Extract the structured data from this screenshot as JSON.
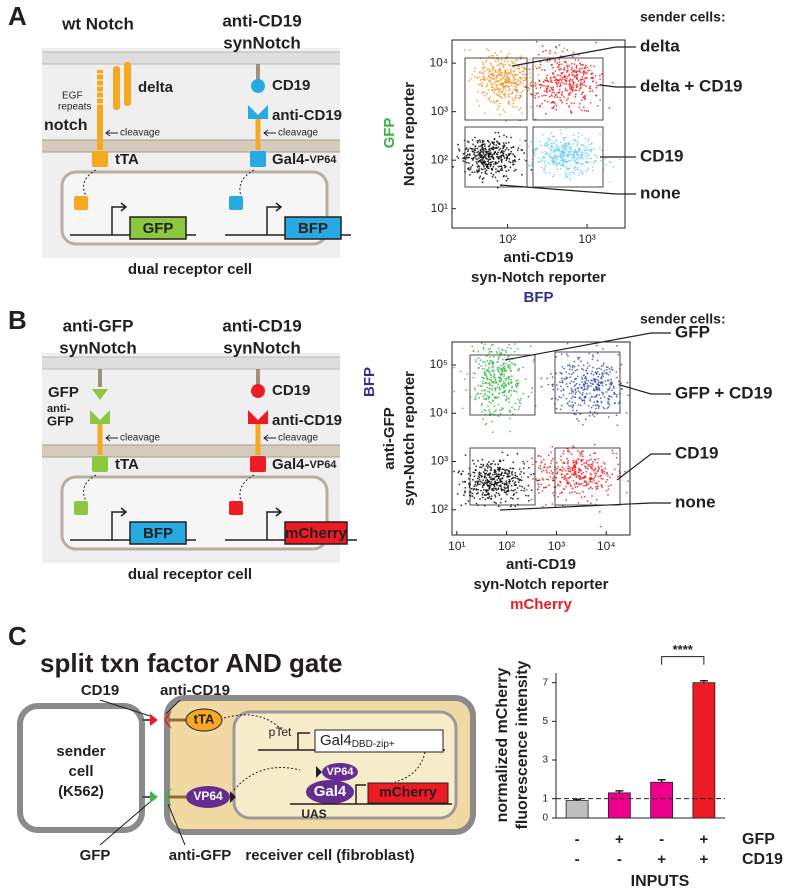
{
  "panel_a": {
    "label": "A",
    "left_title": [
      "wt Notch"
    ],
    "right_title": [
      "anti-CD19",
      "synNotch"
    ],
    "ligand_left": "delta",
    "egf": [
      "EGF",
      "repeats"
    ],
    "receptor_left": [
      "notch"
    ],
    "cleavage": [
      "cleavage",
      "cleavage"
    ],
    "ligand_right": "CD19",
    "receptor_right": "anti-CD19",
    "tf_left": "tTA",
    "tf_right": "Gal4-",
    "tf_right_sub": "VP64",
    "reporter_left": "GFP",
    "reporter_right": "BFP",
    "cell": "dual receptor cell"
  },
  "panel_b": {
    "label": "B",
    "left_title": [
      "anti-GFP",
      "synNotch"
    ],
    "right_title": [
      "anti-CD19",
      "synNotch"
    ],
    "ligand_left": "GFP",
    "receptor_left": [
      "anti-",
      "GFP"
    ],
    "cleavage": [
      "cleavage",
      "cleavage"
    ],
    "ligand_right": "CD19",
    "receptor_right": "anti-CD19",
    "tf_left": "tTA",
    "tf_right": "Gal4-",
    "tf_right_sub": "VP64",
    "reporter_left": "BFP",
    "reporter_right": "mCherry",
    "cell": "dual receptor cell"
  },
  "panel_c": {
    "label": "C",
    "title": "split txn factor AND gate",
    "sender": [
      "sender",
      "cell",
      "(K562)"
    ],
    "ligand_top": "CD19",
    "receptor_top": "anti-CD19",
    "ligand_bottom": "GFP",
    "receptor_bottom": "anti-GFP",
    "tta": "tTA",
    "vp64": [
      "VP64",
      "VP64"
    ],
    "ptet": "pTet",
    "gal4_dbd": "Gal4",
    "gal4_dbd_sub": "DBD-zip+",
    "gal4": "Gal4",
    "mcherry": "mCherry",
    "uas": "UAS",
    "receiver": "receiver cell (fibroblast)"
  },
  "chart_data": [
    {
      "type": "scatter",
      "log": true,
      "legend_title": "sender cells:",
      "gates": [
        "delta",
        "delta + CD19",
        "CD19",
        "none"
      ],
      "colors": [
        "#f7941d",
        "#ed1c24",
        "#6dcff6",
        "#000000"
      ],
      "ylabel": [
        "Notch reporter"
      ],
      "ylabel_tag": "GFP",
      "ylabel_tag_color": "#3cb043",
      "xlabel": [
        "anti-CD19",
        "syn-Notch reporter"
      ],
      "xlabel_tag": "BFP",
      "xlabel_tag_color": "#2e3192",
      "xlim": [
        20,
        3000
      ],
      "ylim": [
        4,
        30000
      ],
      "xticks": [
        {
          "value": 100,
          "label": "10²"
        },
        {
          "value": 1000,
          "label": "10³"
        }
      ],
      "yticks": [
        {
          "value": 10,
          "label": "10¹"
        },
        {
          "value": 100,
          "label": "10²"
        },
        {
          "value": 1000,
          "label": "10³"
        },
        {
          "value": 10000,
          "label": "10⁴"
        }
      ]
    },
    {
      "type": "scatter",
      "log": true,
      "legend_title": "sender cells:",
      "gates": [
        "GFP",
        "GFP + CD19",
        "CD19",
        "none"
      ],
      "colors": [
        "#39b54a",
        "#3a53a4",
        "#ed1c24",
        "#000000"
      ],
      "ylabel": [
        "anti-GFP",
        "syn-Notch reporter"
      ],
      "ylabel_tag": "BFP",
      "ylabel_tag_color": "#2e3192",
      "xlabel": [
        "anti-CD19",
        "syn-Notch reporter"
      ],
      "xlabel_tag": "mCherry",
      "xlabel_tag_color": "#ed1c24",
      "xlim": [
        8,
        30000
      ],
      "ylim": [
        30,
        300000
      ],
      "xticks": [
        {
          "value": 10,
          "label": "10¹"
        },
        {
          "value": 100,
          "label": "10²"
        },
        {
          "value": 1000,
          "label": "10³"
        },
        {
          "value": 10000,
          "label": "10⁴"
        }
      ],
      "yticks": [
        {
          "value": 100,
          "label": "10²"
        },
        {
          "value": 1000,
          "label": "10³"
        },
        {
          "value": 10000,
          "label": "10⁴"
        },
        {
          "value": 100000,
          "label": "10⁵"
        }
      ]
    },
    {
      "type": "bar",
      "ylabel": [
        "normalized mCherry",
        "fluorescence intensity"
      ],
      "values": [
        0.9,
        1.3,
        1.85,
        7
      ],
      "errors": [
        0.07,
        0.1,
        0.13,
        0.1
      ],
      "colors": [
        "#bcbec0",
        "#ec008c",
        "#ec008c",
        "#ed1c24"
      ],
      "ylim": [
        0,
        7.5
      ],
      "yticks": [
        0,
        1,
        3,
        5,
        7
      ],
      "reference_line": 1,
      "significance": {
        "label": "****",
        "between": [
          2,
          3
        ]
      },
      "inputs": {
        "rows": [
          {
            "name": "GFP",
            "signs": [
              "-",
              "+",
              "-",
              "+"
            ]
          },
          {
            "name": "CD19",
            "signs": [
              "-",
              "-",
              "+",
              "+"
            ]
          }
        ],
        "title": "INPUTS"
      }
    }
  ]
}
